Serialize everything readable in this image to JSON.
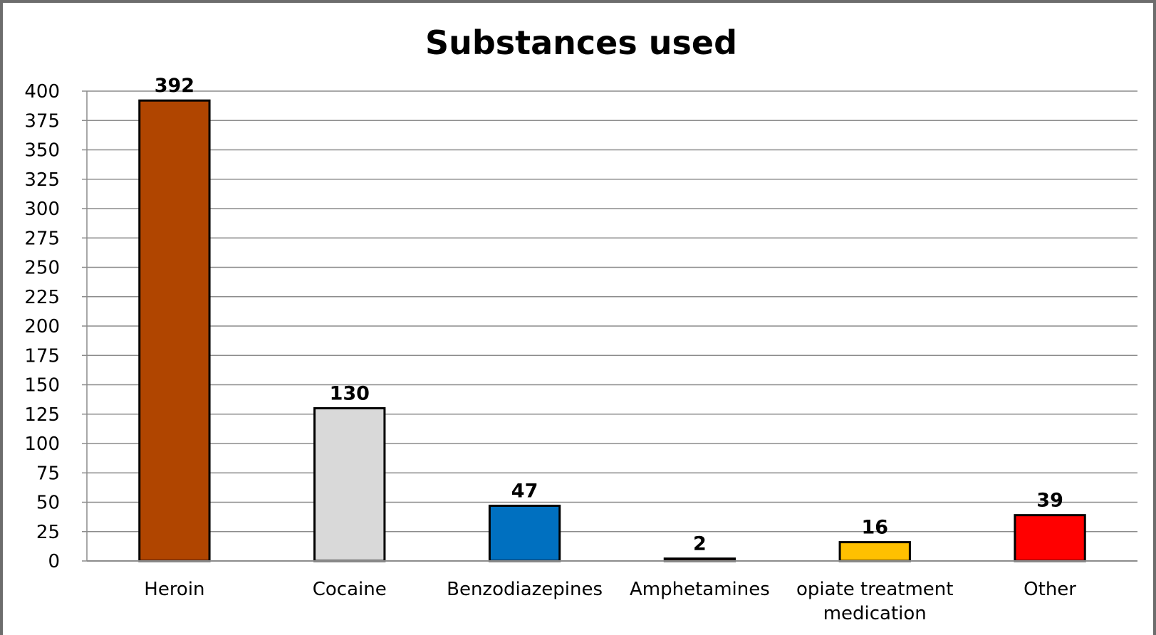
{
  "chart_data": {
    "type": "bar",
    "title": "Substances used",
    "categories": [
      "Heroin",
      "Cocaine",
      "Benzodiazepines",
      "Amphetamines",
      "opiate treatment medication",
      "Other"
    ],
    "category_lines": [
      [
        "Heroin"
      ],
      [
        "Cocaine"
      ],
      [
        "Benzodiazepines"
      ],
      [
        "Amphetamines"
      ],
      [
        "opiate treatment",
        "medication"
      ],
      [
        "Other"
      ]
    ],
    "values": [
      392,
      130,
      47,
      2,
      16,
      39
    ],
    "colors": [
      "#b04500",
      "#d9d9d9",
      "#0070c0",
      "#7b2c00",
      "#ffc000",
      "#ff0000"
    ],
    "ylim": [
      0,
      400
    ],
    "yticks": [
      0,
      25,
      50,
      75,
      100,
      125,
      150,
      175,
      200,
      225,
      250,
      275,
      300,
      325,
      350,
      375,
      400
    ],
    "grid": true,
    "data_labels": true
  }
}
